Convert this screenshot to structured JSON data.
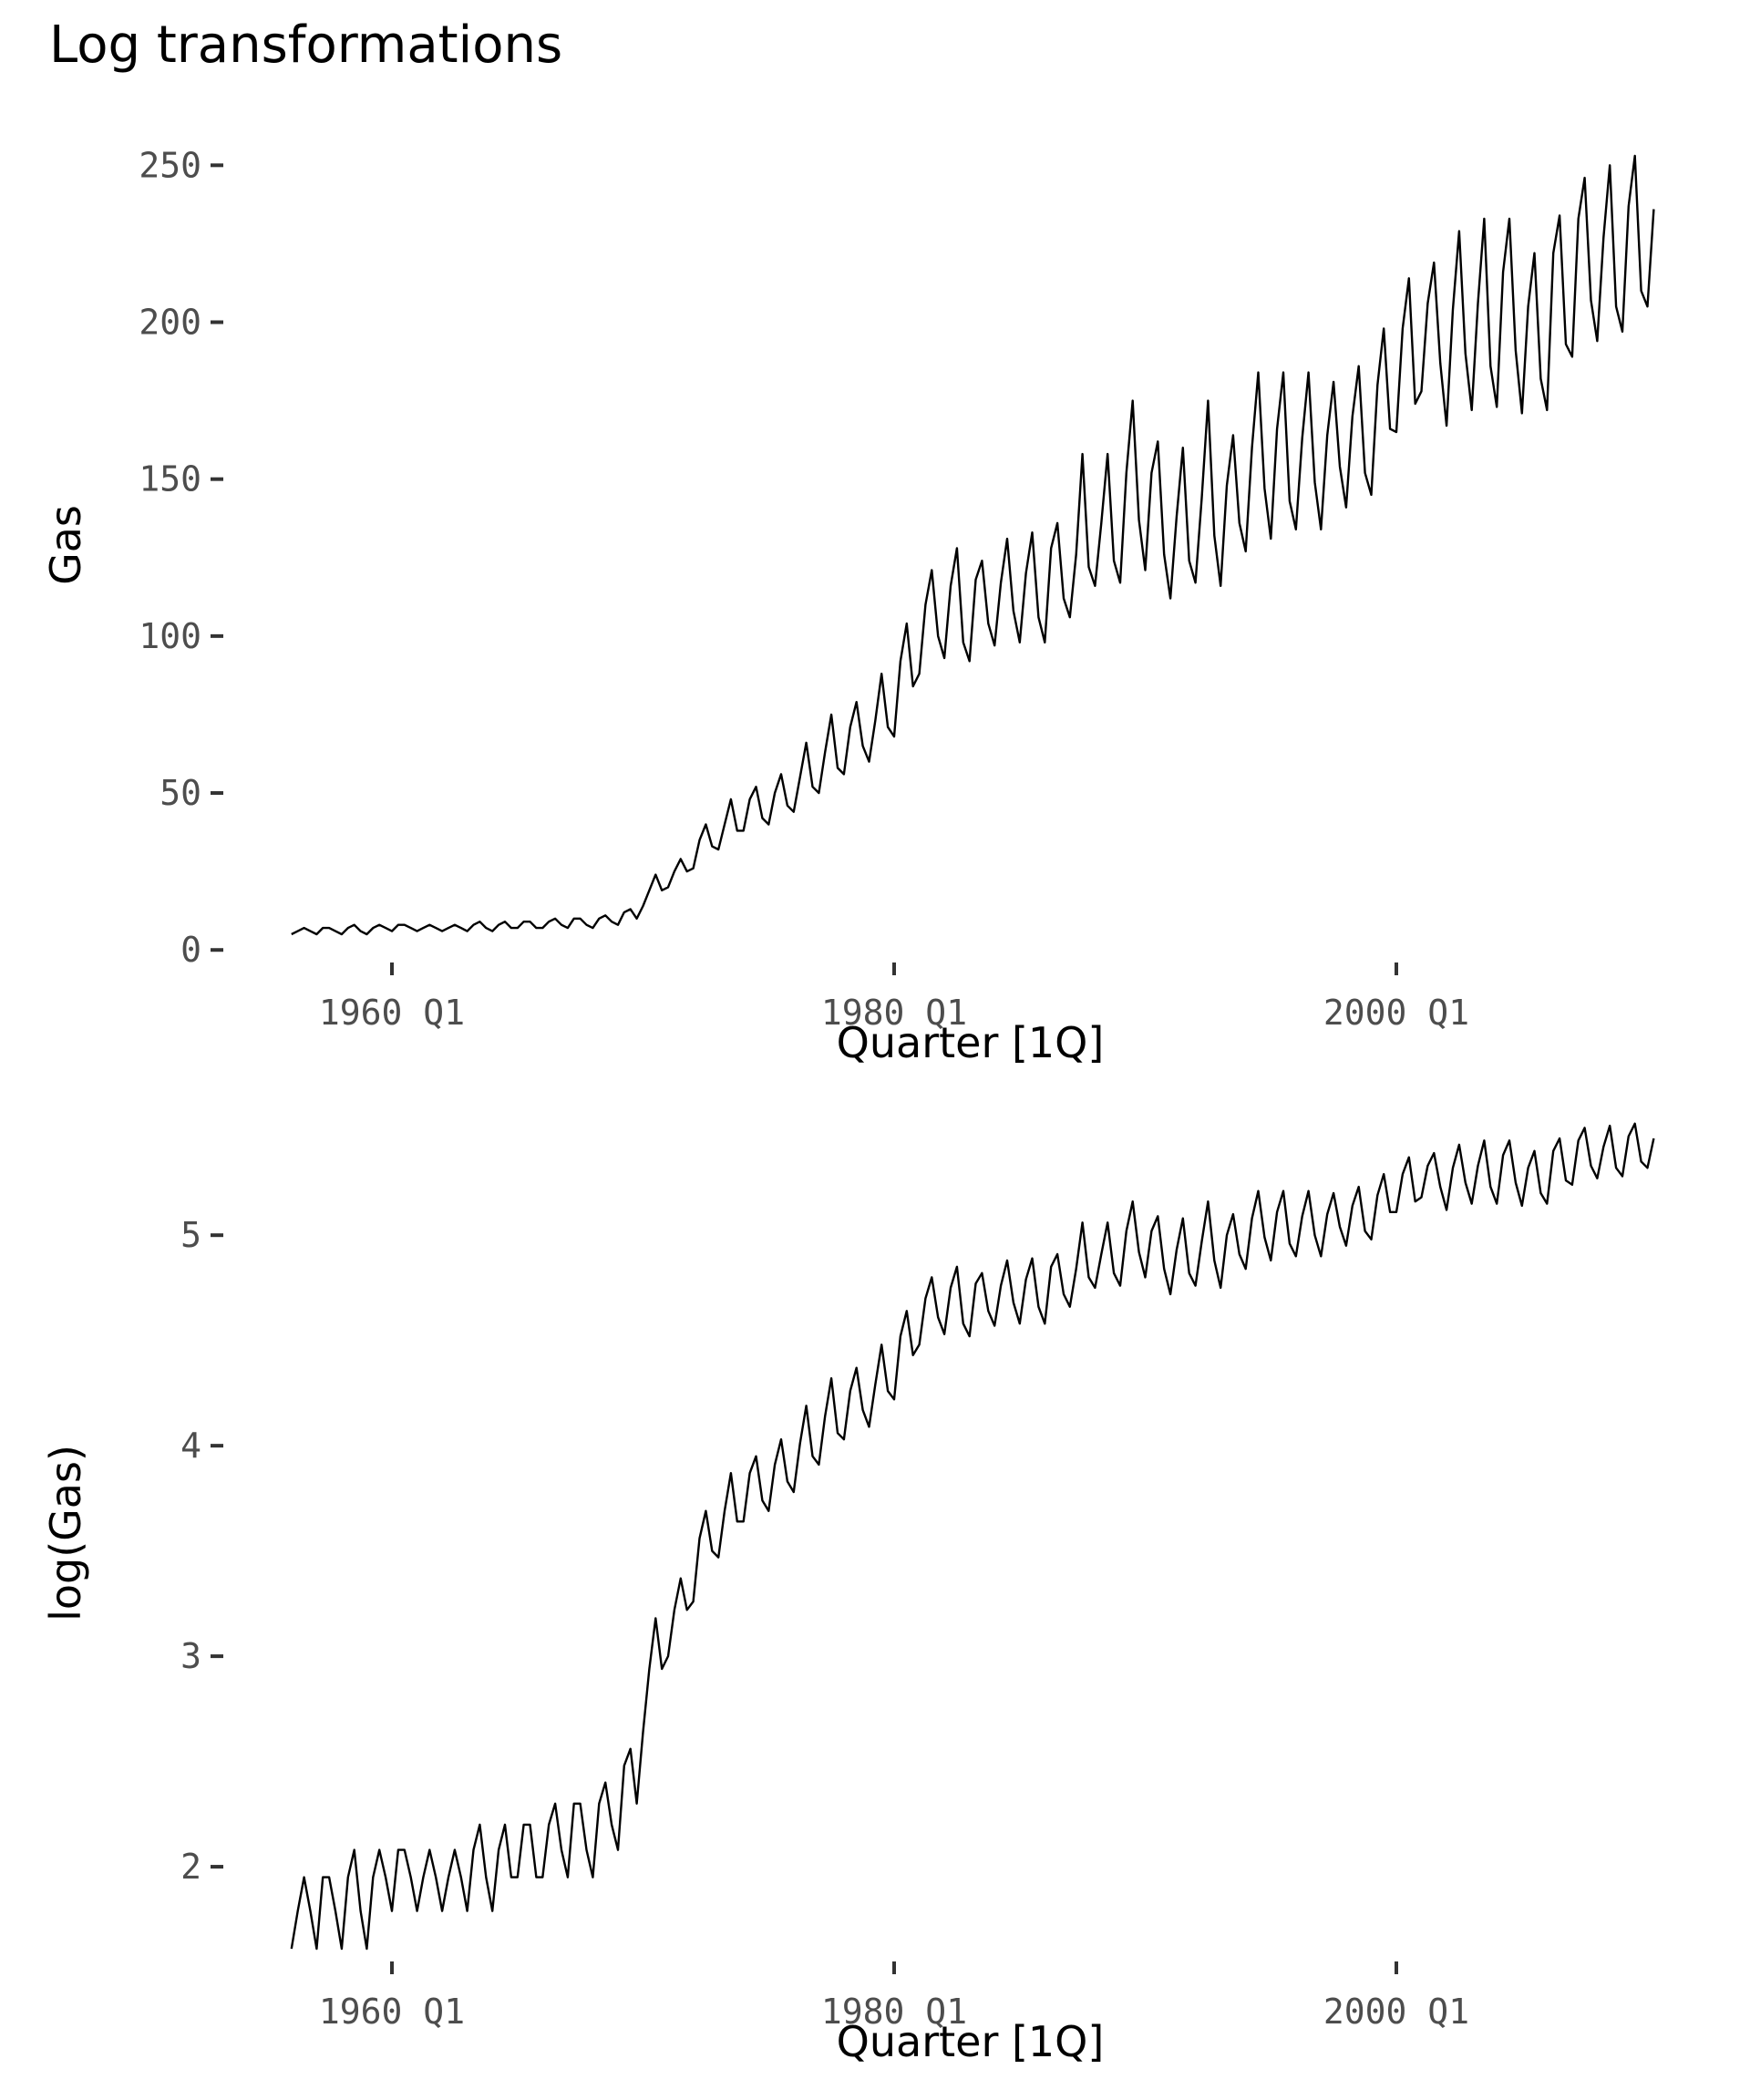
{
  "title": "Log transformations",
  "chart_data": [
    {
      "type": "line",
      "ylabel": "Gas",
      "xlabel": "Quarter [1Q]",
      "xticks": [
        "1960 Q1",
        "1980 Q1",
        "2000 Q1"
      ],
      "yticks": [
        "0",
        "50",
        "100",
        "150",
        "200",
        "250"
      ],
      "x_start": "1956 Q1",
      "x_end": "2010 Q2",
      "ylim": [
        -4,
        262
      ],
      "grid": false,
      "series": [
        {
          "values": [
            5,
            6,
            7,
            6,
            5,
            7,
            7,
            6,
            5,
            7,
            8,
            6,
            5,
            7,
            8,
            7,
            6,
            8,
            8,
            7,
            6,
            7,
            8,
            7,
            6,
            7,
            8,
            7,
            6,
            8,
            9,
            7,
            6,
            8,
            9,
            7,
            7,
            9,
            9,
            7,
            7,
            9,
            10,
            8,
            7,
            10,
            10,
            8,
            7,
            10,
            11,
            9,
            8,
            12,
            13,
            10,
            14,
            19,
            24,
            19,
            20,
            25,
            29,
            25,
            26,
            35,
            40,
            33,
            32,
            40,
            48,
            38,
            38,
            48,
            52,
            42,
            40,
            50,
            56,
            46,
            44,
            55,
            66,
            52,
            50,
            63,
            75,
            58,
            56,
            71,
            79,
            65,
            60,
            73,
            88,
            71,
            68,
            92,
            104,
            84,
            88,
            110,
            121,
            100,
            93,
            116,
            128,
            98,
            92,
            118,
            124,
            104,
            97,
            117,
            131,
            108,
            98,
            120,
            133,
            106,
            98,
            128,
            136,
            112,
            106,
            126,
            158,
            122,
            116,
            136,
            158,
            124,
            117,
            152,
            175,
            137,
            121,
            152,
            162,
            126,
            112,
            138,
            160,
            124,
            117,
            144,
            175,
            132,
            116,
            148,
            164,
            136,
            127,
            160,
            184,
            147,
            131,
            166,
            184,
            143,
            134,
            163,
            184,
            149,
            134,
            164,
            181,
            154,
            141,
            170,
            186,
            152,
            145,
            180,
            198,
            166,
            165,
            198,
            214,
            174,
            178,
            206,
            219,
            187,
            167,
            204,
            229,
            190,
            172,
            206,
            233,
            186,
            173,
            216,
            233,
            191,
            171,
            205,
            222,
            182,
            172,
            222,
            234,
            193,
            189,
            233,
            246,
            207,
            194,
            227,
            250,
            205,
            197,
            237,
            253,
            210,
            205,
            236
          ]
        }
      ]
    },
    {
      "type": "line",
      "ylabel": "log(Gas)",
      "xlabel": "Quarter [1Q]",
      "xticks": [
        "1960 Q1",
        "1980 Q1",
        "2000 Q1"
      ],
      "yticks": [
        "2",
        "3",
        "4",
        "5"
      ],
      "x_start": "1956 Q1",
      "x_end": "2010 Q2",
      "ylim": [
        1.55,
        5.62
      ],
      "grid": false,
      "series": [
        {
          "values": [
            1.61,
            1.79,
            1.95,
            1.79,
            1.61,
            1.95,
            1.95,
            1.79,
            1.61,
            1.95,
            2.08,
            1.79,
            1.61,
            1.95,
            2.08,
            1.95,
            1.79,
            2.08,
            2.08,
            1.95,
            1.79,
            1.95,
            2.08,
            1.95,
            1.79,
            1.95,
            2.08,
            1.95,
            1.79,
            2.08,
            2.2,
            1.95,
            1.79,
            2.08,
            2.2,
            1.95,
            1.95,
            2.2,
            2.2,
            1.95,
            1.95,
            2.2,
            2.3,
            2.08,
            1.95,
            2.3,
            2.3,
            2.08,
            1.95,
            2.3,
            2.4,
            2.2,
            2.08,
            2.48,
            2.56,
            2.3,
            2.64,
            2.94,
            3.18,
            2.94,
            3.0,
            3.22,
            3.37,
            3.22,
            3.26,
            3.56,
            3.69,
            3.5,
            3.47,
            3.69,
            3.87,
            3.64,
            3.64,
            3.87,
            3.95,
            3.74,
            3.69,
            3.91,
            4.03,
            3.83,
            3.78,
            4.01,
            4.19,
            3.95,
            3.91,
            4.14,
            4.32,
            4.06,
            4.03,
            4.26,
            4.37,
            4.17,
            4.09,
            4.29,
            4.48,
            4.26,
            4.22,
            4.52,
            4.64,
            4.43,
            4.48,
            4.7,
            4.8,
            4.61,
            4.53,
            4.75,
            4.85,
            4.58,
            4.52,
            4.77,
            4.82,
            4.64,
            4.57,
            4.76,
            4.88,
            4.68,
            4.58,
            4.79,
            4.89,
            4.66,
            4.58,
            4.85,
            4.91,
            4.72,
            4.66,
            4.84,
            5.06,
            4.8,
            4.75,
            4.91,
            5.06,
            4.82,
            4.76,
            5.02,
            5.16,
            4.92,
            4.8,
            5.02,
            5.09,
            4.84,
            4.72,
            4.93,
            5.08,
            4.82,
            4.76,
            4.97,
            5.16,
            4.88,
            4.75,
            5.0,
            5.1,
            4.91,
            4.84,
            5.08,
            5.21,
            4.99,
            4.88,
            5.11,
            5.21,
            4.96,
            4.9,
            5.09,
            5.21,
            5.0,
            4.9,
            5.1,
            5.2,
            5.04,
            4.95,
            5.14,
            5.23,
            5.02,
            4.98,
            5.19,
            5.29,
            5.11,
            5.11,
            5.29,
            5.37,
            5.16,
            5.18,
            5.33,
            5.39,
            5.23,
            5.12,
            5.32,
            5.43,
            5.25,
            5.15,
            5.33,
            5.45,
            5.23,
            5.15,
            5.38,
            5.45,
            5.25,
            5.14,
            5.32,
            5.4,
            5.2,
            5.15,
            5.4,
            5.46,
            5.26,
            5.24,
            5.45,
            5.51,
            5.33,
            5.27,
            5.42,
            5.52,
            5.32,
            5.28,
            5.47,
            5.53,
            5.35,
            5.32,
            5.46
          ]
        }
      ]
    }
  ]
}
